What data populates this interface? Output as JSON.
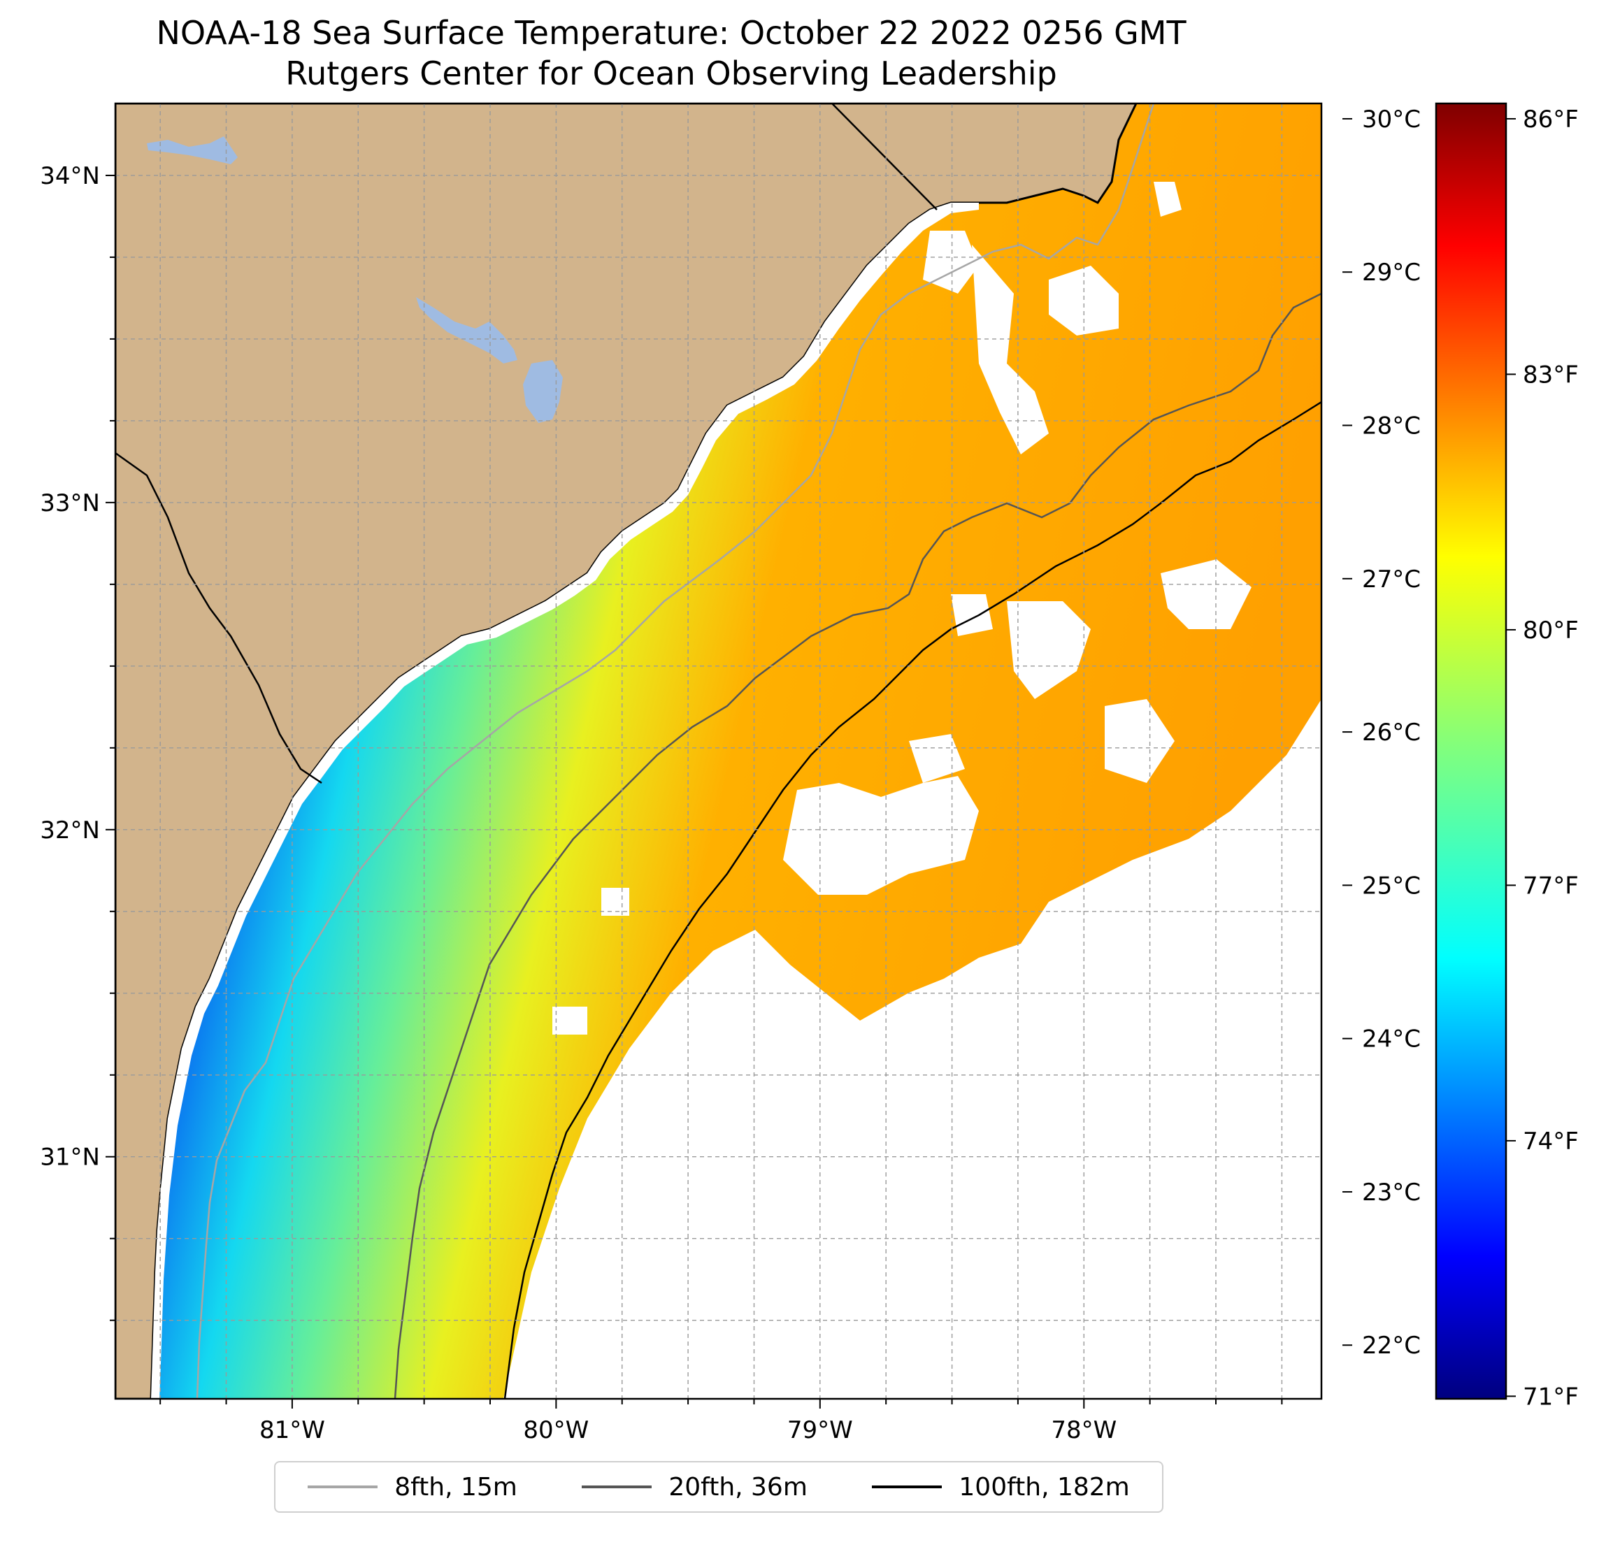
{
  "title": {
    "line1": "NOAA-18 Sea Surface Temperature: October 22 2022 0256 GMT",
    "line2": "Rutgers Center for Ocean Observing Leadership"
  },
  "map": {
    "lon_range": [
      -81.67,
      -77.1
    ],
    "lat_range": [
      30.26,
      34.22
    ],
    "latitude_ticks": [
      {
        "value": 34,
        "label": "34°N"
      },
      {
        "value": 33,
        "label": "33°N"
      },
      {
        "value": 32,
        "label": "32°N"
      },
      {
        "value": 31,
        "label": "31°N"
      }
    ],
    "longitude_ticks": [
      {
        "value": -81,
        "label": "81°W"
      },
      {
        "value": -80,
        "label": "80°W"
      },
      {
        "value": -79,
        "label": "79°W"
      },
      {
        "value": -78,
        "label": "78°W"
      }
    ],
    "grid": "dashed gray every 0.25°",
    "colors": {
      "land": "#d2b48c",
      "lakes": "#9fbbe2",
      "cloud_mask": "#ffffff",
      "coastline": "#000000"
    }
  },
  "colorbar": {
    "colormap": "jet",
    "range_celsius": [
      21.65,
      30.1
    ],
    "celsius_ticks": [
      {
        "value": 30,
        "label": "30°C"
      },
      {
        "value": 29,
        "label": "29°C"
      },
      {
        "value": 28,
        "label": "28°C"
      },
      {
        "value": 27,
        "label": "27°C"
      },
      {
        "value": 26,
        "label": "26°C"
      },
      {
        "value": 25,
        "label": "25°C"
      },
      {
        "value": 24,
        "label": "24°C"
      },
      {
        "value": 23,
        "label": "23°C"
      },
      {
        "value": 22,
        "label": "22°C"
      }
    ],
    "fahrenheit_ticks": [
      {
        "value": 86,
        "label": "86°F"
      },
      {
        "value": 83,
        "label": "83°F"
      },
      {
        "value": 80,
        "label": "80°F"
      },
      {
        "value": 77,
        "label": "77°F"
      },
      {
        "value": 74,
        "label": "74°F"
      },
      {
        "value": 71,
        "label": "71°F"
      }
    ]
  },
  "legend": {
    "items": [
      {
        "label": "8fth, 15m",
        "color": "#a6a6a6"
      },
      {
        "label": "20fth, 36m",
        "color": "#555555"
      },
      {
        "label": "100fth, 182m",
        "color": "#000000"
      }
    ]
  }
}
